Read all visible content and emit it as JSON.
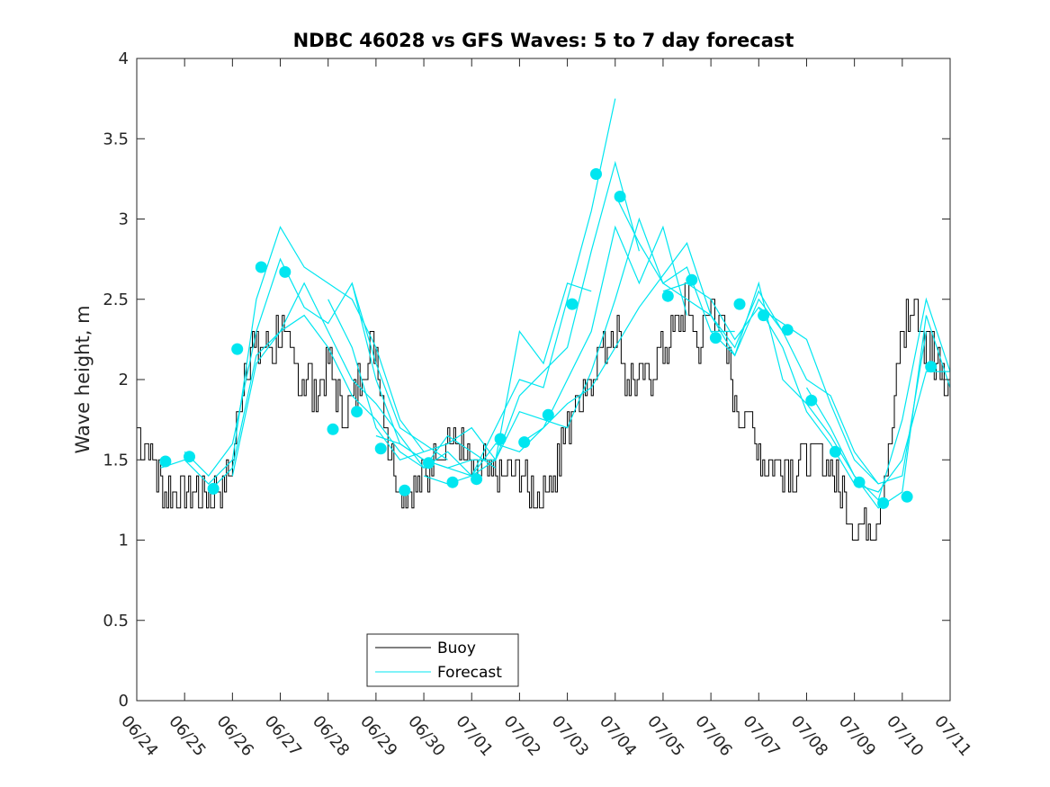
{
  "chart_data": {
    "type": "line",
    "title": "NDBC 46028 vs GFS Waves: 5 to 7 day forecast",
    "xlabel": "",
    "ylabel": "Wave height, m",
    "xlim": [
      "06/24",
      "07/11"
    ],
    "ylim": [
      0,
      4
    ],
    "x_tick_labels": [
      "06/24",
      "06/25",
      "06/26",
      "06/27",
      "06/28",
      "06/29",
      "06/30",
      "07/01",
      "07/02",
      "07/03",
      "07/04",
      "07/05",
      "07/06",
      "07/07",
      "07/08",
      "07/09",
      "07/10",
      "07/11"
    ],
    "y_tick_labels": [
      "0",
      "0.5",
      "1",
      "1.5",
      "2",
      "2.5",
      "3",
      "3.5",
      "4"
    ],
    "y_ticks": [
      0,
      0.5,
      1,
      1.5,
      2,
      2.5,
      3,
      3.5,
      4
    ],
    "grid": false,
    "legend": {
      "position": "bottom-center",
      "entries": [
        "Buoy",
        "Forecast"
      ]
    },
    "colors": {
      "buoy": "#000000",
      "forecast": "#00e6f0"
    },
    "series": [
      {
        "name": "Buoy",
        "x_days": [
          0,
          0.25,
          0.5,
          0.75,
          1,
          1.25,
          1.5,
          1.75,
          2,
          2.25,
          2.5,
          2.75,
          3,
          3.25,
          3.5,
          3.75,
          4,
          4.25,
          4.5,
          4.75,
          5,
          5.25,
          5.5,
          5.75,
          6,
          6.25,
          6.5,
          6.75,
          7,
          7.25,
          7.5,
          7.75,
          8,
          8.25,
          8.5,
          8.75,
          9,
          9.25,
          9.5,
          9.75,
          10,
          10.25,
          10.5,
          10.75,
          11,
          11.25,
          11.5,
          11.75,
          12,
          12.25,
          12.5,
          12.75,
          13,
          13.25,
          13.5,
          13.75,
          14,
          14.25,
          14.5,
          14.75,
          15,
          15.25,
          15.5,
          15.75,
          16,
          16.25,
          16.5,
          16.75,
          17
        ],
        "y": [
          1.7,
          1.55,
          1.35,
          1.3,
          1.3,
          1.25,
          1.3,
          1.3,
          1.5,
          2.1,
          2.2,
          2.15,
          2.3,
          2.1,
          2.0,
          1.9,
          2.1,
          1.8,
          1.85,
          2.1,
          2.2,
          1.6,
          1.3,
          1.25,
          1.4,
          1.55,
          1.65,
          1.6,
          1.4,
          1.45,
          1.35,
          1.4,
          1.4,
          1.3,
          1.3,
          1.45,
          1.7,
          1.9,
          2.05,
          2.2,
          2.3,
          2.0,
          1.95,
          2.05,
          2.2,
          2.3,
          2.5,
          2.15,
          2.5,
          2.3,
          1.8,
          1.75,
          1.55,
          1.5,
          1.45,
          1.45,
          1.5,
          1.55,
          1.45,
          1.25,
          1.1,
          1.05,
          1.2,
          1.6,
          2.3,
          2.45,
          2.2,
          2.1,
          2.0
        ]
      },
      {
        "name": "Forecast",
        "lines": [
          {
            "x_days": [
              0.5,
              1,
              1.5,
              2,
              2.5,
              3,
              3.5,
              4,
              4.5,
              5,
              5.5,
              6
            ],
            "y": [
              1.45,
              1.5,
              1.35,
              1.5,
              2.5,
              2.95,
              2.7,
              2.6,
              2.5,
              2.2,
              1.75,
              1.55
            ]
          },
          {
            "x_days": [
              1,
              1.5,
              2,
              2.5,
              3,
              3.5,
              4,
              4.5,
              5,
              5.5,
              6,
              6.5
            ],
            "y": [
              1.55,
              1.4,
              1.6,
              2.3,
              2.75,
              2.45,
              2.35,
              2.6,
              2.1,
              1.7,
              1.6,
              1.5
            ]
          },
          {
            "x_days": [
              1.5,
              2,
              2.5,
              3,
              3.5,
              4,
              4.5,
              5,
              5.5,
              6,
              6.5,
              7
            ],
            "y": [
              1.3,
              1.45,
              2.15,
              2.3,
              2.6,
              2.3,
              2.0,
              1.85,
              1.65,
              1.45,
              1.55,
              1.4
            ]
          },
          {
            "x_days": [
              2,
              2.5,
              3,
              3.5,
              4,
              4.5,
              5,
              5.5,
              6,
              6.5,
              7,
              7.5
            ],
            "y": [
              1.4,
              2.1,
              2.3,
              2.4,
              2.2,
              1.9,
              1.75,
              1.55,
              1.45,
              1.65,
              1.55,
              1.45
            ]
          },
          {
            "x_days": [
              4,
              4.5,
              5,
              5.5,
              6,
              6.5,
              7,
              7.5,
              8,
              8.5,
              9,
              9.5
            ],
            "y": [
              2.5,
              2.2,
              1.7,
              1.5,
              1.55,
              1.6,
              1.7,
              1.5,
              2.3,
              2.1,
              2.6,
              2.55
            ]
          },
          {
            "x_days": [
              4.5,
              5,
              5.5,
              6,
              6.5,
              7,
              7.5,
              8,
              8.5,
              9,
              9.5,
              10
            ],
            "y": [
              2.6,
              2.0,
              1.6,
              1.5,
              1.45,
              1.4,
              1.7,
              2.0,
              1.95,
              2.5,
              3.05,
              3.75
            ]
          },
          {
            "x_days": [
              5,
              5.5,
              6,
              6.5,
              7,
              7.5,
              8,
              8.5,
              9,
              9.5,
              10,
              10.5
            ],
            "y": [
              1.65,
              1.6,
              1.5,
              1.45,
              1.5,
              1.5,
              1.9,
              2.05,
              2.2,
              2.8,
              3.35,
              2.8
            ]
          },
          {
            "x_days": [
              6,
              6.5,
              7,
              7.5,
              8,
              8.5,
              9,
              9.5,
              10,
              10.5,
              11,
              11.5
            ],
            "y": [
              1.4,
              1.35,
              1.4,
              1.6,
              1.55,
              1.7,
              2.0,
              2.3,
              2.95,
              2.6,
              2.95,
              2.4
            ]
          },
          {
            "x_days": [
              7,
              7.5,
              8,
              8.5,
              9,
              9.5,
              10,
              10.5,
              11,
              11.5,
              12,
              12.5
            ],
            "y": [
              1.4,
              1.5,
              1.8,
              1.75,
              1.7,
              2.05,
              2.5,
              3.0,
              2.6,
              2.7,
              2.3,
              2.3
            ]
          },
          {
            "x_days": [
              8,
              8.5,
              9,
              9.5,
              10,
              10.5,
              11,
              11.5,
              12,
              12.5,
              13,
              13.5
            ],
            "y": [
              1.6,
              1.7,
              1.85,
              1.95,
              2.2,
              2.45,
              2.65,
              2.85,
              2.4,
              2.15,
              2.5,
              2.3
            ]
          },
          {
            "x_days": [
              10,
              10.5,
              11,
              11.5,
              12,
              12.5,
              13,
              13.5,
              14,
              14.5,
              15,
              15.5
            ],
            "y": [
              3.15,
              2.85,
              2.6,
              2.5,
              2.4,
              2.2,
              2.55,
              2.3,
              2.0,
              1.9,
              1.55,
              1.35
            ]
          },
          {
            "x_days": [
              11,
              11.5,
              12,
              12.5,
              13,
              13.5,
              14,
              14.5,
              15,
              15.5,
              16,
              16.5
            ],
            "y": [
              2.55,
              2.6,
              2.5,
              2.25,
              2.45,
              2.35,
              2.25,
              1.85,
              1.5,
              1.35,
              1.4,
              2.3
            ]
          },
          {
            "x_days": [
              12,
              12.5,
              13,
              13.5,
              14,
              14.5,
              15,
              15.5,
              16,
              16.5,
              17
            ],
            "y": [
              2.3,
              2.15,
              2.6,
              2.0,
              1.85,
              1.65,
              1.4,
              1.2,
              1.3,
              2.4,
              1.95
            ]
          },
          {
            "x_days": [
              13,
              13.5,
              14,
              14.5,
              15,
              15.5,
              16,
              16.5,
              17
            ],
            "y": [
              2.45,
              2.2,
              1.8,
              1.6,
              1.35,
              1.3,
              1.5,
              2.05,
              2.05
            ]
          },
          {
            "x_days": [
              14,
              14.5,
              15,
              15.5,
              16,
              16.5,
              17
            ],
            "y": [
              1.95,
              1.7,
              1.4,
              1.25,
              1.75,
              2.5,
              2.05
            ]
          }
        ],
        "markers_x_days": [
          0.6,
          1.1,
          1.6,
          2.1,
          2.6,
          3.1,
          4.1,
          4.6,
          5.1,
          5.6,
          6.1,
          6.6,
          7.1,
          7.6,
          8.1,
          8.6,
          9.1,
          9.6,
          10.1,
          11.1,
          11.6,
          12.1,
          12.6,
          13.1,
          13.6,
          14.1,
          14.6,
          15.1,
          15.6,
          16.1,
          16.6
        ],
        "markers_y": [
          1.49,
          1.52,
          1.32,
          2.19,
          2.7,
          2.67,
          1.69,
          1.8,
          1.57,
          1.31,
          1.48,
          1.36,
          1.38,
          1.63,
          1.61,
          1.78,
          2.47,
          3.28,
          3.14,
          2.52,
          2.62,
          2.26,
          2.47,
          2.4,
          2.31,
          1.87,
          1.55,
          1.36,
          1.23,
          1.27,
          2.08
        ]
      }
    ]
  }
}
